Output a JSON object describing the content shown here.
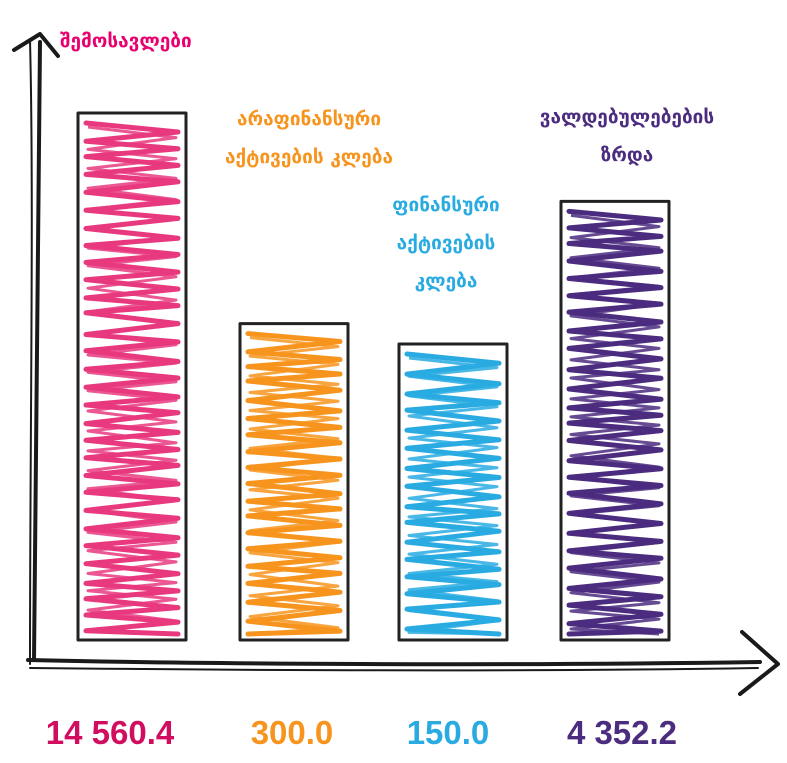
{
  "chart_data": {
    "type": "bar",
    "y_title": "შემოსავლები",
    "categories": [
      "არაფინანსური აქტივების კლება",
      "არაფინანსური აქტივების კლება",
      "ფინანსური აქტივების კლება",
      "ვალდებულებების ზრდა"
    ],
    "category_label_lines": [
      [],
      [
        "არაფინანსური",
        "აქტივების კლება"
      ],
      [
        "ფინანსური",
        "აქტივების",
        "კლება"
      ],
      [
        "ვალდებულებების",
        "ზრდა"
      ]
    ],
    "values": [
      14560.4,
      300.0,
      150.0,
      4352.2
    ],
    "value_labels": [
      "14 560.4",
      "300.0",
      "150.0",
      "4 352.2"
    ],
    "colors": [
      "#e8397f",
      "#f7941d",
      "#29abe2",
      "#4b2c7f"
    ],
    "value_label_colors": [
      "#d10d5f",
      "#f7941d",
      "#29abe2",
      "#4b2c7f"
    ],
    "title_color": "#e8006e",
    "grid": false,
    "legend": "none"
  }
}
